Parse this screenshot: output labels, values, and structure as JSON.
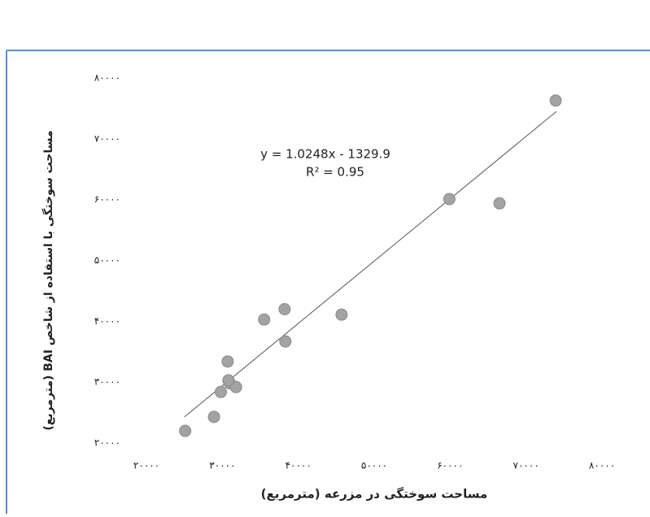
{
  "chart_data": {
    "type": "scatter",
    "equation": "y = 1.0248x - 1329.9",
    "r_squared": "R² = 0.95",
    "x_label": "مساحت سوختگی در مزرعه (مترمربع)",
    "y_label": "مساحت سوختگی با استفاده از شاخص BAI (مترمربع)",
    "xlim": [
      20000,
      80000
    ],
    "ylim": [
      20000,
      80000
    ],
    "xticks": [
      {
        "value": 20000,
        "label": "۲۰۰۰۰"
      },
      {
        "value": 30000,
        "label": "۳۰۰۰۰"
      },
      {
        "value": 40000,
        "label": "۴۰۰۰۰"
      },
      {
        "value": 50000,
        "label": "۵۰۰۰۰"
      },
      {
        "value": 60000,
        "label": "۶۰۰۰۰"
      },
      {
        "value": 70000,
        "label": "۷۰۰۰۰"
      },
      {
        "value": 80000,
        "label": "۸۰۰۰۰"
      }
    ],
    "yticks": [
      {
        "value": 20000,
        "label": "۲۰۰۰۰"
      },
      {
        "value": 30000,
        "label": "۳۰۰۰۰"
      },
      {
        "value": 40000,
        "label": "۴۰۰۰۰"
      },
      {
        "value": 50000,
        "label": "۵۰۰۰۰"
      },
      {
        "value": 60000,
        "label": "۶۰۰۰۰"
      },
      {
        "value": 70000,
        "label": "۷۰۰۰۰"
      },
      {
        "value": 80000,
        "label": "۸۰۰۰۰"
      }
    ],
    "color": "#a3a3a3",
    "x": [
      25100,
      28900,
      30700,
      29800,
      31000,
      31800,
      30800,
      35500,
      38200,
      38300,
      45700,
      59900,
      66500,
      73900
    ],
    "values": [
      22000,
      24300,
      33400,
      28400,
      29800,
      29200,
      30300,
      40300,
      42000,
      36700,
      41100,
      60100,
      59400,
      76300
    ],
    "trendline": {
      "x": [
        25000,
        74000
      ],
      "y": [
        24290,
        74505
      ],
      "color": "#555555"
    }
  }
}
